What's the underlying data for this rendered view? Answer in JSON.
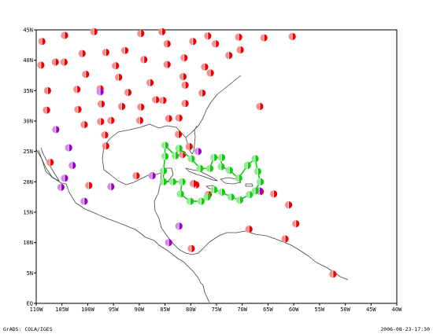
{
  "chart_data": {
    "type": "scatter",
    "ylim": [
      0,
      45
    ],
    "xlim": [
      -110,
      -40
    ],
    "x_ticks": [
      {
        "lon": -110,
        "label": "110W"
      },
      {
        "lon": -105,
        "label": "105W"
      },
      {
        "lon": -100,
        "label": "100W"
      },
      {
        "lon": -95,
        "label": "95W"
      },
      {
        "lon": -90,
        "label": "90W"
      },
      {
        "lon": -85,
        "label": "85W"
      },
      {
        "lon": -80,
        "label": "80W"
      },
      {
        "lon": -75,
        "label": "75W"
      },
      {
        "lon": -70,
        "label": "70W"
      },
      {
        "lon": -65,
        "label": "65W"
      },
      {
        "lon": -60,
        "label": "60W"
      },
      {
        "lon": -55,
        "label": "55W"
      },
      {
        "lon": -50,
        "label": "50W"
      },
      {
        "lon": -45,
        "label": "45W"
      },
      {
        "lon": -40,
        "label": "40W"
      }
    ],
    "y_ticks": [
      {
        "lat": 0,
        "label": "EQ"
      },
      {
        "lat": 5,
        "label": "5N"
      },
      {
        "lat": 10,
        "label": "10N"
      },
      {
        "lat": 15,
        "label": "15N"
      },
      {
        "lat": 20,
        "label": "20N"
      },
      {
        "lat": 25,
        "label": "25N"
      },
      {
        "lat": 30,
        "label": "30N"
      },
      {
        "lat": 35,
        "label": "35N"
      },
      {
        "lat": 40,
        "label": "40N"
      },
      {
        "lat": 45,
        "label": "45N"
      }
    ],
    "series": [
      {
        "color": "#ee0000",
        "points": [
          [
            -108.9,
            43.1
          ],
          [
            -104.5,
            44.1
          ],
          [
            -98.8,
            44.7
          ],
          [
            -89.7,
            44.4
          ],
          [
            -85.6,
            44.7
          ],
          [
            -76.7,
            44.0
          ],
          [
            -70.7,
            43.8
          ],
          [
            -65.8,
            43.7
          ],
          [
            -60.3,
            43.9
          ],
          [
            -109.1,
            39.2
          ],
          [
            -106.3,
            39.7
          ],
          [
            -101.1,
            41.1
          ],
          [
            -96.5,
            41.3
          ],
          [
            -92.8,
            41.6
          ],
          [
            -89.1,
            40.1
          ],
          [
            -84.6,
            42.7
          ],
          [
            -79.6,
            43.1
          ],
          [
            -75.2,
            42.7
          ],
          [
            -72.6,
            40.8
          ],
          [
            -70.4,
            41.7
          ],
          [
            -104.6,
            39.7
          ],
          [
            -100.4,
            37.7
          ],
          [
            -94.6,
            39.1
          ],
          [
            -87.9,
            36.3
          ],
          [
            -84.6,
            39.3
          ],
          [
            -81.3,
            40.4
          ],
          [
            -77.3,
            38.9
          ],
          [
            -76.2,
            37.9
          ],
          [
            -81.5,
            37.3
          ],
          [
            -107.8,
            35.0
          ],
          [
            -102.1,
            35.2
          ],
          [
            -97.6,
            35.3
          ],
          [
            -94.0,
            37.2
          ],
          [
            -92.2,
            34.7
          ],
          [
            -86.8,
            33.5
          ],
          [
            -81.1,
            35.9
          ],
          [
            -77.8,
            34.6
          ],
          [
            -85.4,
            33.4
          ],
          [
            -108.0,
            31.8
          ],
          [
            -101.9,
            31.9
          ],
          [
            -97.4,
            32.8
          ],
          [
            -93.4,
            32.4
          ],
          [
            -89.7,
            32.3
          ],
          [
            -84.3,
            30.4
          ],
          [
            -81.1,
            32.9
          ],
          [
            -66.6,
            32.4
          ],
          [
            -97.5,
            29.9
          ],
          [
            -95.5,
            30.1
          ],
          [
            -89.9,
            30.1
          ],
          [
            -82.3,
            30.5
          ],
          [
            -100.7,
            29.4
          ],
          [
            -96.7,
            27.7
          ],
          [
            -96.5,
            25.9
          ],
          [
            -107.3,
            23.2
          ],
          [
            -81.6,
            24.5
          ],
          [
            -80.3,
            25.8
          ],
          [
            -82.4,
            27.8
          ],
          [
            -99.8,
            19.4
          ],
          [
            -90.6,
            21.0
          ],
          [
            -79.0,
            19.5
          ],
          [
            -79.5,
            19.7
          ],
          [
            -76.6,
            17.9
          ],
          [
            -68.7,
            12.2
          ],
          [
            -66.5,
            18.4
          ],
          [
            -63.9,
            18.0
          ],
          [
            -61.0,
            16.2
          ],
          [
            -59.6,
            13.1
          ],
          [
            -61.7,
            10.6
          ],
          [
            -79.9,
            9.0
          ],
          [
            -52.4,
            4.8
          ]
        ]
      },
      {
        "color": "#9a00c8",
        "points": [
          [
            -106.2,
            28.6
          ],
          [
            -103.7,
            25.6
          ],
          [
            -103.0,
            22.7
          ],
          [
            -104.5,
            20.6
          ],
          [
            -105.2,
            19.1
          ],
          [
            -95.5,
            19.2
          ],
          [
            -97.6,
            34.8
          ],
          [
            -87.5,
            21.0
          ],
          [
            -78.6,
            25.0
          ],
          [
            -82.3,
            12.7
          ],
          [
            -84.3,
            10.0
          ],
          [
            -100.7,
            16.8
          ],
          [
            -66.7,
            18.5
          ]
        ]
      },
      {
        "color": "#11cc11",
        "points": [
          [
            -82.3,
            25.5
          ],
          [
            -83.0,
            24.3
          ],
          [
            -85.0,
            26.0
          ],
          [
            -85.0,
            24.2
          ],
          [
            -85.3,
            21.8
          ],
          [
            -85.3,
            20.0
          ],
          [
            -83.5,
            20.0
          ],
          [
            -81.7,
            20.0
          ],
          [
            -82.0,
            18.0
          ],
          [
            -80.1,
            16.8
          ],
          [
            -78.0,
            16.8
          ],
          [
            -76.8,
            17.5
          ],
          [
            -75.5,
            18.7
          ],
          [
            -74.0,
            18.3
          ],
          [
            -72.2,
            17.5
          ],
          [
            -70.5,
            17.0
          ],
          [
            -68.6,
            17.9
          ],
          [
            -67.5,
            18.5
          ],
          [
            -66.5,
            20.0
          ],
          [
            -67.0,
            21.7
          ],
          [
            -67.5,
            23.8
          ],
          [
            -69.0,
            22.7
          ],
          [
            -70.7,
            20.6
          ],
          [
            -72.5,
            21.9
          ],
          [
            -74.1,
            22.5
          ],
          [
            -74.0,
            24.0
          ],
          [
            -75.5,
            24.0
          ],
          [
            -76.3,
            22.2
          ],
          [
            -78.2,
            22.2
          ],
          [
            -79.9,
            23.8
          ]
        ]
      }
    ]
  },
  "footer": {
    "left": "GrADS: COLA/IGES",
    "right": "2006-08-23-17:30"
  }
}
